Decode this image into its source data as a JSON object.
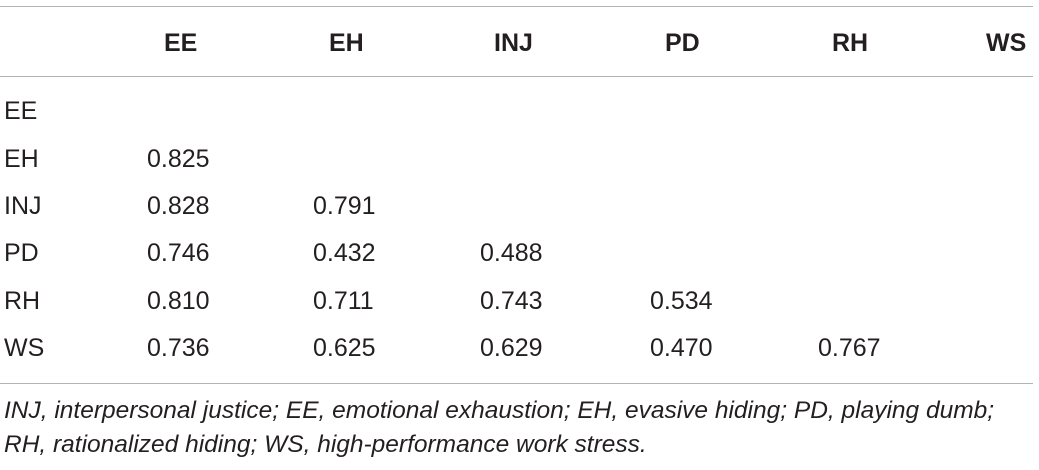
{
  "table": {
    "columns": [
      "",
      "EE",
      "EH",
      "INJ",
      "PD",
      "RH",
      "WS"
    ],
    "rows": [
      {
        "label": "EE",
        "values": [
          "",
          "",
          "",
          "",
          "",
          ""
        ]
      },
      {
        "label": "EH",
        "values": [
          "0.825",
          "",
          "",
          "",
          "",
          ""
        ]
      },
      {
        "label": "INJ",
        "values": [
          "0.828",
          "0.791",
          "",
          "",
          "",
          ""
        ]
      },
      {
        "label": "PD",
        "values": [
          "0.746",
          "0.432",
          "0.488",
          "",
          "",
          ""
        ]
      },
      {
        "label": "RH",
        "values": [
          "0.810",
          "0.711",
          "0.743",
          "0.534",
          "",
          ""
        ]
      },
      {
        "label": "WS",
        "values": [
          "0.736",
          "0.625",
          "0.629",
          "0.470",
          "0.767",
          ""
        ]
      }
    ]
  },
  "footnote": "INJ, interpersonal justice; EE, emotional exhaustion; EH, evasive hiding; PD, playing dumb; RH, rationalized hiding; WS, high-performance work stress."
}
